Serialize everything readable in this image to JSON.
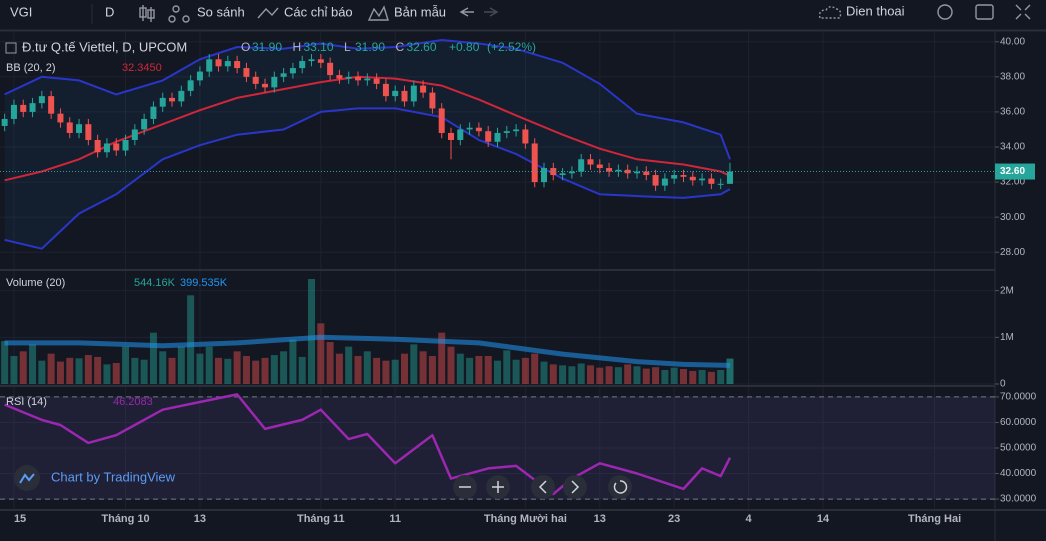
{
  "toolbar": {
    "symbol": "VGI",
    "interval": "D",
    "compare": "So sánh",
    "indicators": "Các chỉ báo",
    "templates": "Bản mẫu",
    "layout": "Dien thoai"
  },
  "watermark": "Chart by TradingView",
  "chart_data": [
    {
      "type": "candlestick",
      "title": "Đ.tư Q.tế Viettel, D, UPCOM",
      "up_color": "#26a69a",
      "down_color": "#ef5350",
      "readout": [
        {
          "key": "O",
          "label": "31.90"
        },
        {
          "key": "H",
          "label": "33.10"
        },
        {
          "key": "L",
          "label": "31.90"
        },
        {
          "key": "C",
          "label": "32.60"
        }
      ],
      "change": {
        "value": 0.8,
        "label": "+0.80"
      },
      "change_pct": {
        "value": 2.52,
        "label": "(+2.52%)"
      },
      "last_price_label": "32.60",
      "xlim": [
        -0.5,
        106.5
      ],
      "xticks": [
        {
          "value": 1,
          "label": "15"
        },
        {
          "value": 13,
          "label": "Tháng 10"
        },
        {
          "value": 21,
          "label": "13"
        },
        {
          "value": 34,
          "label": "Tháng 11"
        },
        {
          "value": 42,
          "label": "11"
        },
        {
          "value": 56,
          "label": "Tháng Mười hai"
        },
        {
          "value": 64,
          "label": "13"
        },
        {
          "value": 72,
          "label": "23"
        },
        {
          "value": 80,
          "label": "4"
        },
        {
          "value": 88,
          "label": "14"
        },
        {
          "value": 100,
          "label": "Tháng Hai"
        }
      ],
      "ylim": [
        27.1,
        40.5
      ],
      "yticks": [
        {
          "value": 28,
          "label": "28.00"
        },
        {
          "value": 30,
          "label": "30.00"
        },
        {
          "value": 32,
          "label": "32.00"
        },
        {
          "value": 34,
          "label": "34.00"
        },
        {
          "value": 36,
          "label": "36.00"
        },
        {
          "value": 38,
          "label": "38.00"
        },
        {
          "value": 40,
          "label": "40.00"
        }
      ],
      "ohlc": [
        [
          35.2,
          35.9,
          34.9,
          35.6
        ],
        [
          35.6,
          36.7,
          35.3,
          36.4
        ],
        [
          36.4,
          36.7,
          35.7,
          36.0
        ],
        [
          36.0,
          36.8,
          35.7,
          36.5
        ],
        [
          36.5,
          37.2,
          36.2,
          36.9
        ],
        [
          36.9,
          37.2,
          35.6,
          35.9
        ],
        [
          35.9,
          36.2,
          35.1,
          35.4
        ],
        [
          35.4,
          35.7,
          34.5,
          34.8
        ],
        [
          34.8,
          35.6,
          34.5,
          35.3
        ],
        [
          35.3,
          35.6,
          34.1,
          34.4
        ],
        [
          34.4,
          34.7,
          33.4,
          33.7
        ],
        [
          33.7,
          34.5,
          33.4,
          34.2
        ],
        [
          34.2,
          34.5,
          33.5,
          33.8
        ],
        [
          33.8,
          34.7,
          33.5,
          34.4
        ],
        [
          34.4,
          35.3,
          34.1,
          35.0
        ],
        [
          35.0,
          35.9,
          34.7,
          35.6
        ],
        [
          35.6,
          36.6,
          35.3,
          36.3
        ],
        [
          36.3,
          37.1,
          36.0,
          36.8
        ],
        [
          36.8,
          37.1,
          36.3,
          36.6
        ],
        [
          36.6,
          37.5,
          36.3,
          37.2
        ],
        [
          37.2,
          38.1,
          36.9,
          37.8
        ],
        [
          37.8,
          38.6,
          37.5,
          38.3
        ],
        [
          38.3,
          39.3,
          38.0,
          39.0
        ],
        [
          39.0,
          39.3,
          38.3,
          38.6
        ],
        [
          38.6,
          39.2,
          38.3,
          38.9
        ],
        [
          38.9,
          39.2,
          38.2,
          38.5
        ],
        [
          38.5,
          38.8,
          37.7,
          38.0
        ],
        [
          38.0,
          38.3,
          37.3,
          37.6
        ],
        [
          37.6,
          37.9,
          37.1,
          37.4
        ],
        [
          37.4,
          38.3,
          37.1,
          38.0
        ],
        [
          38.0,
          38.5,
          37.7,
          38.2
        ],
        [
          38.2,
          38.8,
          37.9,
          38.5
        ],
        [
          38.5,
          39.2,
          38.2,
          38.9
        ],
        [
          38.9,
          39.3,
          38.6,
          39.0
        ],
        [
          39.0,
          39.3,
          38.5,
          38.8
        ],
        [
          38.8,
          39.1,
          37.8,
          38.1
        ],
        [
          38.1,
          38.4,
          37.6,
          37.9
        ],
        [
          37.9,
          38.3,
          37.6,
          38.0
        ],
        [
          38.0,
          38.3,
          37.5,
          37.8
        ],
        [
          37.8,
          38.2,
          37.5,
          37.9
        ],
        [
          37.9,
          38.2,
          37.3,
          37.6
        ],
        [
          37.6,
          37.9,
          36.6,
          36.9
        ],
        [
          36.9,
          37.5,
          36.6,
          37.2
        ],
        [
          37.2,
          37.5,
          36.3,
          36.6
        ],
        [
          36.6,
          37.8,
          36.3,
          37.5
        ],
        [
          37.5,
          37.8,
          36.8,
          37.1
        ],
        [
          37.1,
          37.4,
          35.9,
          36.2
        ],
        [
          36.2,
          36.5,
          34.5,
          34.8
        ],
        [
          34.8,
          35.1,
          33.3,
          34.4
        ],
        [
          34.4,
          35.3,
          34.1,
          35.0
        ],
        [
          35.0,
          35.4,
          34.7,
          35.1
        ],
        [
          35.1,
          35.4,
          34.6,
          34.9
        ],
        [
          34.9,
          35.2,
          34.0,
          34.3
        ],
        [
          34.3,
          35.1,
          34.0,
          34.8
        ],
        [
          34.8,
          35.2,
          34.5,
          34.9
        ],
        [
          34.9,
          35.3,
          34.6,
          35.0
        ],
        [
          35.0,
          35.3,
          33.9,
          34.2
        ],
        [
          34.2,
          34.5,
          31.7,
          32.0
        ],
        [
          32.0,
          33.1,
          31.7,
          32.8
        ],
        [
          32.8,
          33.1,
          32.1,
          32.4
        ],
        [
          32.4,
          32.8,
          32.1,
          32.5
        ],
        [
          32.5,
          32.9,
          32.2,
          32.6
        ],
        [
          32.6,
          33.6,
          32.3,
          33.3
        ],
        [
          33.3,
          33.6,
          32.7,
          33.0
        ],
        [
          33.0,
          33.3,
          32.5,
          32.8
        ],
        [
          32.8,
          33.1,
          32.3,
          32.6
        ],
        [
          32.6,
          33.0,
          32.3,
          32.7
        ],
        [
          32.7,
          33.0,
          32.2,
          32.5
        ],
        [
          32.5,
          32.9,
          32.2,
          32.6
        ],
        [
          32.6,
          32.9,
          32.1,
          32.4
        ],
        [
          32.4,
          32.7,
          31.5,
          31.8
        ],
        [
          31.8,
          32.5,
          31.5,
          32.2
        ],
        [
          32.2,
          32.7,
          31.9,
          32.4
        ],
        [
          32.4,
          32.7,
          32.0,
          32.3
        ],
        [
          32.3,
          32.6,
          31.8,
          32.1
        ],
        [
          32.1,
          32.5,
          31.8,
          32.2
        ],
        [
          32.2,
          32.5,
          31.6,
          31.9
        ],
        [
          31.9,
          32.2,
          31.6,
          31.9
        ],
        [
          31.9,
          33.1,
          31.9,
          32.6
        ]
      ],
      "indicator": {
        "title": "BB (20, 2)",
        "x": [
          0,
          4,
          8,
          12,
          17,
          21,
          25,
          30,
          34,
          38,
          42,
          47,
          51,
          55,
          60,
          64,
          68,
          73,
          77,
          78
        ],
        "series": [
          {
            "color": "#2a36c9",
            "values": [
              37.0,
              38.0,
              37.8,
              37.0,
              37.8,
              39.0,
              39.7,
              39.6,
              39.9,
              39.6,
              39.7,
              40.1,
              39.9,
              39.6,
              38.8,
              37.6,
              35.9,
              35.4,
              34.7,
              33.3
            ]
          },
          {
            "color": "#d0263a",
            "values": [
              32.1,
              32.6,
              33.3,
              34.3,
              35.3,
              36.1,
              36.8,
              37.3,
              37.7,
              38.0,
              37.9,
              37.5,
              36.7,
              35.8,
              34.7,
              33.9,
              33.3,
              33.0,
              32.6,
              32.345
            ],
            "readout": "32.3450"
          },
          {
            "color": "#2a36c9",
            "values": [
              28.7,
              28.2,
              30.2,
              31.3,
              33.3,
              34.1,
              34.7,
              35.0,
              36.0,
              36.2,
              36.2,
              35.7,
              34.4,
              33.6,
              32.2,
              31.3,
              31.2,
              31.1,
              31.3,
              31.6
            ]
          }
        ]
      }
    },
    {
      "type": "bar",
      "title": "Volume (20)",
      "values": [
        920000,
        600000,
        700000,
        850000,
        500000,
        650000,
        480000,
        560000,
        550000,
        620000,
        580000,
        420000,
        450000,
        800000,
        560000,
        520000,
        1100000,
        700000,
        560000,
        800000,
        1900000,
        650000,
        800000,
        560000,
        540000,
        700000,
        600000,
        500000,
        560000,
        620000,
        700000,
        950000,
        580000,
        2250000,
        1300000,
        900000,
        650000,
        800000,
        600000,
        700000,
        560000,
        500000,
        520000,
        650000,
        850000,
        700000,
        600000,
        1100000,
        800000,
        650000,
        560000,
        600000,
        600000,
        500000,
        720000,
        520000,
        560000,
        650000,
        480000,
        420000,
        400000,
        380000,
        440000,
        400000,
        350000,
        380000,
        360000,
        420000,
        380000,
        330000,
        360000,
        300000,
        350000,
        320000,
        280000,
        300000,
        260000,
        300000,
        544160
      ],
      "last_label": "544.16K",
      "ylim": [
        0,
        2400000
      ],
      "yticks": [
        {
          "value": 0,
          "label": "0"
        },
        {
          "value": 1000000,
          "label": "1M"
        },
        {
          "value": 2000000,
          "label": "2M"
        }
      ],
      "ma": {
        "color": "#2196f3",
        "x": [
          0,
          8,
          17,
          25,
          34,
          42,
          51,
          60,
          68,
          73,
          78
        ],
        "values": [
          880000,
          880000,
          820000,
          880000,
          1000000,
          960000,
          880000,
          640000,
          480000,
          420000,
          399535
        ],
        "readout": "399.535K"
      }
    },
    {
      "type": "line",
      "title": "RSI (14)",
      "color": "#9c27b0",
      "x": [
        0,
        4,
        6,
        9,
        12,
        17,
        21,
        25,
        28,
        32,
        34,
        37,
        39,
        42,
        46,
        48,
        52,
        55,
        59,
        61,
        64,
        68,
        73,
        75,
        77,
        78
      ],
      "values": [
        67,
        61,
        59,
        52,
        55,
        65,
        68,
        71,
        57.5,
        61,
        65,
        53.5,
        55.5,
        44,
        55,
        38,
        42,
        43,
        32,
        38,
        44,
        40,
        34,
        42,
        39,
        46.2083
      ],
      "readout": "46.2083",
      "band": [
        30,
        70
      ],
      "ylim": [
        26.5,
        73.5
      ],
      "yticks": [
        {
          "value": 30,
          "label": "30.0000"
        },
        {
          "value": 40,
          "label": "40.0000"
        },
        {
          "value": 50,
          "label": "50.0000"
        },
        {
          "value": 60,
          "label": "60.0000"
        },
        {
          "value": 70,
          "label": "70.0000"
        }
      ]
    }
  ]
}
